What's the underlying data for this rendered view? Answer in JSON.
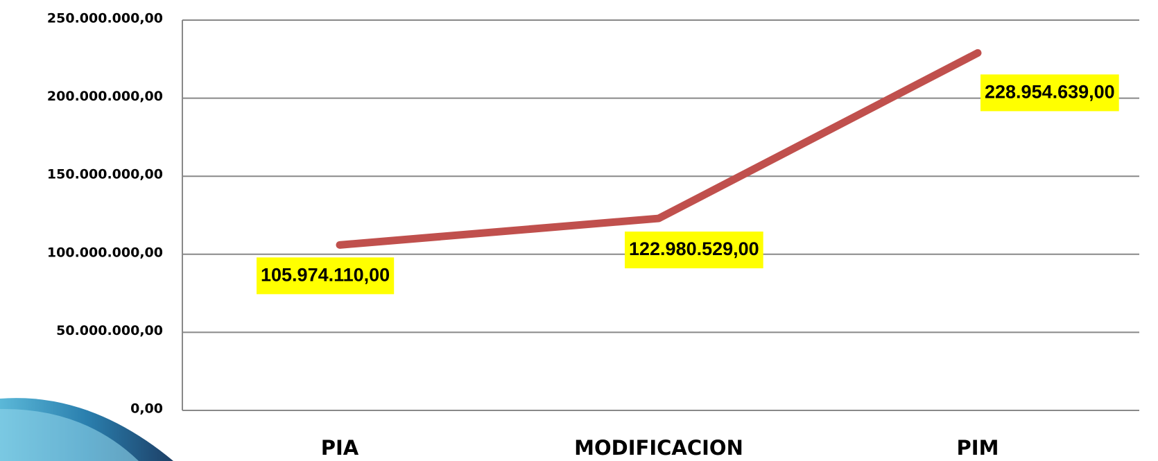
{
  "chart_data": {
    "type": "line",
    "categories": [
      "PIA",
      "MODIFICACION",
      "PIM"
    ],
    "values": [
      105974110,
      122980529,
      228954639
    ],
    "value_labels": [
      "105.974.110,00",
      "122.980.529,00",
      "228.954.639,00"
    ],
    "color": "#c0504d",
    "ylim": [
      0,
      250000000
    ],
    "yticks": [
      {
        "value": 0,
        "label": "0,00"
      },
      {
        "value": 50000000,
        "label": "50.000.000,00"
      },
      {
        "value": 100000000,
        "label": "100.000.000,00"
      },
      {
        "value": 150000000,
        "label": "150.000.000,00"
      },
      {
        "value": 200000000,
        "label": "200.000.000,00"
      },
      {
        "value": 250000000,
        "label": "250.000.000,00"
      }
    ],
    "grid": true
  }
}
